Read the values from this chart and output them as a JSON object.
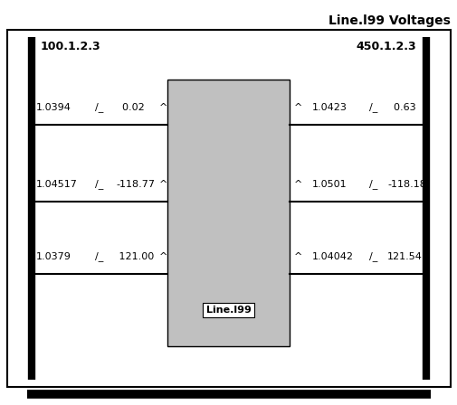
{
  "title": "Line.l99 Voltages",
  "left_bus": "100.1.2.3",
  "right_bus": "450.1.2.3",
  "component_label": "Line.l99",
  "left_phases": [
    {
      "mag": "1.0394",
      "angle": "  0.02"
    },
    {
      "mag": "1.04517",
      "angle": "-118.77"
    },
    {
      "mag": "1.0379",
      "angle": " 121.00"
    }
  ],
  "right_phases": [
    {
      "mag": "1.0423",
      "angle": "  0.63"
    },
    {
      "mag": "1.0501",
      "angle": "-118.18"
    },
    {
      "mag": "1.04042",
      "angle": "121.54"
    }
  ],
  "box_bg": "#c0c0c0",
  "text_color": "#000000",
  "title_fontsize": 10,
  "label_fontsize": 8,
  "bus_fontsize": 9,
  "fig_bg": "#ffffff"
}
